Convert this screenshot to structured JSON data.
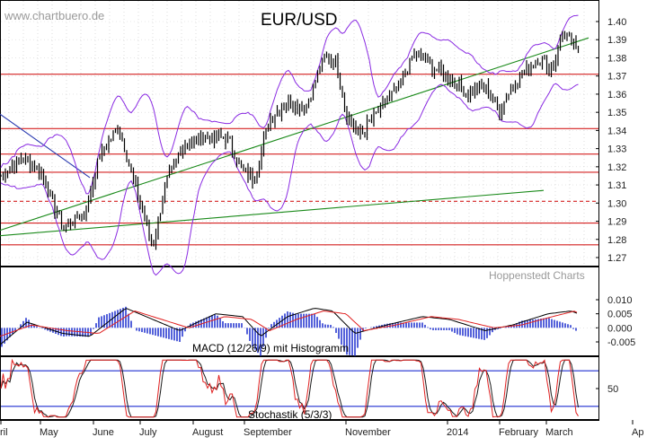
{
  "watermark": "www.chartbuero.de",
  "credit": "Hoppenstedt Charts",
  "chart_data": [
    {
      "type": "candlestick",
      "title": "EUR/USD",
      "ylim": [
        1.255,
        1.41
      ],
      "yticks": [
        "1.27",
        "1.28",
        "1.29",
        "1.30",
        "1.31",
        "1.32",
        "1.33",
        "1.34",
        "1.35",
        "1.36",
        "1.37",
        "1.38",
        "1.39",
        "1.40"
      ],
      "x_labels": [
        "ril",
        "May",
        "June",
        "July",
        "August",
        "September",
        "November",
        "2014",
        "February",
        "March",
        "Ap"
      ],
      "horizontal_levels": [
        1.277,
        1.289,
        1.301,
        1.317,
        1.327,
        1.341,
        1.371
      ],
      "dashed_levels": [
        1.301
      ],
      "trendlines": [
        {
          "name": "downtrend",
          "from": [
            0,
            1.349
          ],
          "to": [
            100,
            1.314
          ]
        },
        {
          "name": "uptrend-long",
          "from": [
            0,
            1.282
          ],
          "to": [
            605,
            1.307
          ]
        },
        {
          "name": "uptrend",
          "from": [
            0,
            1.285
          ],
          "to": [
            655,
            1.391
          ]
        }
      ],
      "bollinger": true,
      "price_path": [
        [
          0,
          1.315
        ],
        [
          25,
          1.325
        ],
        [
          45,
          1.318
        ],
        [
          70,
          1.286
        ],
        [
          95,
          1.295
        ],
        [
          110,
          1.325
        ],
        [
          132,
          1.343
        ],
        [
          150,
          1.31
        ],
        [
          170,
          1.276
        ],
        [
          185,
          1.312
        ],
        [
          205,
          1.332
        ],
        [
          228,
          1.337
        ],
        [
          255,
          1.335
        ],
        [
          265,
          1.322
        ],
        [
          282,
          1.312
        ],
        [
          300,
          1.346
        ],
        [
          320,
          1.356
        ],
        [
          340,
          1.352
        ],
        [
          362,
          1.382
        ],
        [
          375,
          1.376
        ],
        [
          385,
          1.35
        ],
        [
          400,
          1.337
        ],
        [
          420,
          1.35
        ],
        [
          445,
          1.365
        ],
        [
          462,
          1.383
        ],
        [
          480,
          1.375
        ],
        [
          500,
          1.37
        ],
        [
          520,
          1.36
        ],
        [
          540,
          1.364
        ],
        [
          555,
          1.351
        ],
        [
          575,
          1.368
        ],
        [
          600,
          1.38
        ],
        [
          615,
          1.374
        ],
        [
          625,
          1.393
        ],
        [
          635,
          1.39
        ],
        [
          641,
          1.383
        ],
        [
          644,
          1.386
        ]
      ]
    },
    {
      "type": "line",
      "title": "MACD (12/26/9) mit Histogramm",
      "ylim": [
        -0.008,
        0.012
      ],
      "yticks": [
        "0.010",
        "0.005",
        "0.000",
        "-0.005"
      ],
      "series": [
        {
          "name": "MACD",
          "values": [
            [
              0,
              -0.006
            ],
            [
              30,
              0.002
            ],
            [
              70,
              -0.002
            ],
            [
              100,
              -0.003
            ],
            [
              140,
              0.007
            ],
            [
              170,
              0.003
            ],
            [
              200,
              -0.001
            ],
            [
              240,
              0.005
            ],
            [
              270,
              0.004
            ],
            [
              290,
              -0.003
            ],
            [
              320,
              0.004
            ],
            [
              350,
              0.007
            ],
            [
              370,
              0.006
            ],
            [
              395,
              -0.002
            ],
            [
              430,
              0.001
            ],
            [
              470,
              0.004
            ],
            [
              500,
              0.003
            ],
            [
              540,
              -0.001
            ],
            [
              570,
              0.001
            ],
            [
              610,
              0.005
            ],
            [
              635,
              0.006
            ],
            [
              644,
              0.005
            ]
          ]
        },
        {
          "name": "Signal",
          "values": [
            [
              0,
              -0.003
            ],
            [
              35,
              0.001
            ],
            [
              75,
              -0.001
            ],
            [
              110,
              -0.002
            ],
            [
              150,
              0.006
            ],
            [
              180,
              0.003
            ],
            [
              210,
              0.0
            ],
            [
              250,
              0.004
            ],
            [
              280,
              0.003
            ],
            [
              300,
              -0.001
            ],
            [
              330,
              0.003
            ],
            [
              360,
              0.006
            ],
            [
              385,
              0.005
            ],
            [
              405,
              -0.001
            ],
            [
              440,
              0.001
            ],
            [
              480,
              0.004
            ],
            [
              510,
              0.003
            ],
            [
              550,
              0.0
            ],
            [
              580,
              0.001
            ],
            [
              615,
              0.004
            ],
            [
              640,
              0.006
            ],
            [
              644,
              0.005
            ]
          ]
        }
      ]
    },
    {
      "type": "line",
      "title": "Stochastik (5/3/3)",
      "ylim": [
        0,
        100
      ],
      "yticks": [
        "50"
      ],
      "reference_levels": [
        20,
        80
      ]
    }
  ]
}
